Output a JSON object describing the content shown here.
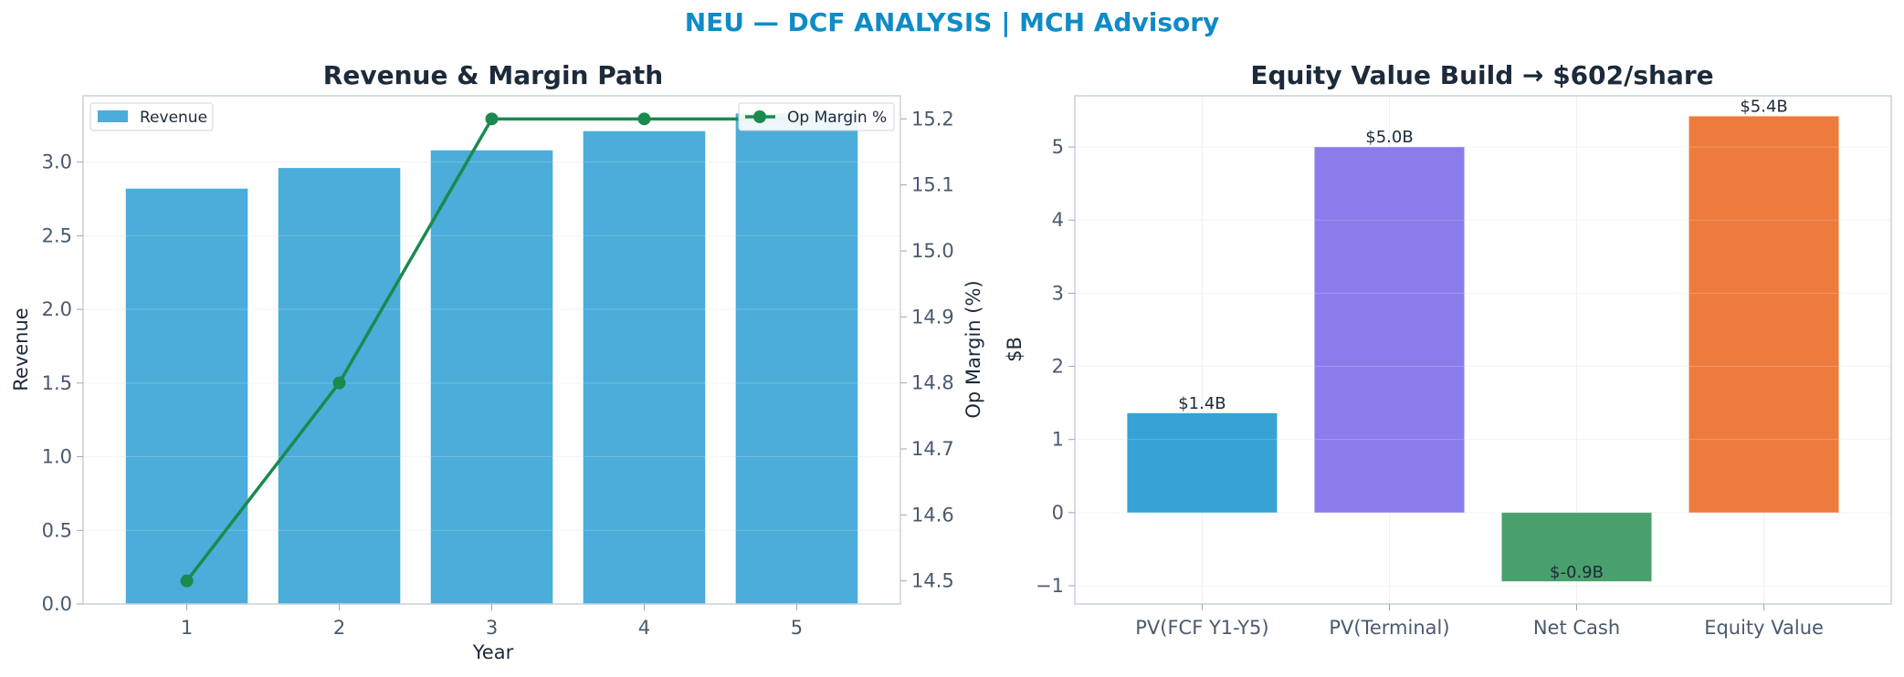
{
  "suptitle": "NEU — DCF ANALYSIS | MCH Advisory",
  "chart_data": [
    {
      "type": "bar",
      "title": "Revenue & Margin Path",
      "xlabel": "Year",
      "ylabel": "Revenue",
      "y2label": "Op Margin (%)",
      "categories": [
        "1",
        "2",
        "3",
        "4",
        "5"
      ],
      "series": [
        {
          "name": "Revenue",
          "type": "bar",
          "axis": "left",
          "color": "#4badd9",
          "values": [
            2.82,
            2.96,
            3.08,
            3.21,
            3.33
          ]
        },
        {
          "name": "Op Margin %",
          "type": "line",
          "axis": "right",
          "color": "#1a8a4f",
          "values": [
            14.5,
            14.8,
            15.2,
            15.2,
            15.2
          ]
        }
      ],
      "ylim": [
        0,
        3.45
      ],
      "yticks": [
        "0.0",
        "0.5",
        "1.0",
        "1.5",
        "2.0",
        "2.5",
        "3.0"
      ],
      "y2lim": [
        14.465,
        15.235
      ],
      "y2ticks": [
        "14.5",
        "14.6",
        "14.7",
        "14.8",
        "14.9",
        "15.0",
        "15.1",
        "15.2"
      ],
      "grid": true,
      "legend_left": "upper-left",
      "legend_right": "upper-right"
    },
    {
      "type": "bar",
      "title": "Equity Value Build → $602/share",
      "xlabel": "",
      "ylabel": "$B",
      "categories": [
        "PV(FCF Y1-Y5)",
        "PV(Terminal)",
        "Net Cash",
        "Equity Value"
      ],
      "values": [
        1.36,
        5.0,
        -0.94,
        5.42
      ],
      "value_labels": [
        "$1.4B",
        "$5.0B",
        "$-0.9B",
        "$5.4B"
      ],
      "colors": [
        "#35a3d5",
        "#8a7deb",
        "#4aa06c",
        "#ee7b3e"
      ],
      "ylim": [
        -1.25,
        5.7
      ],
      "yticks": [
        "−1",
        "0",
        "1",
        "2",
        "3",
        "4",
        "5"
      ],
      "grid": true
    }
  ]
}
